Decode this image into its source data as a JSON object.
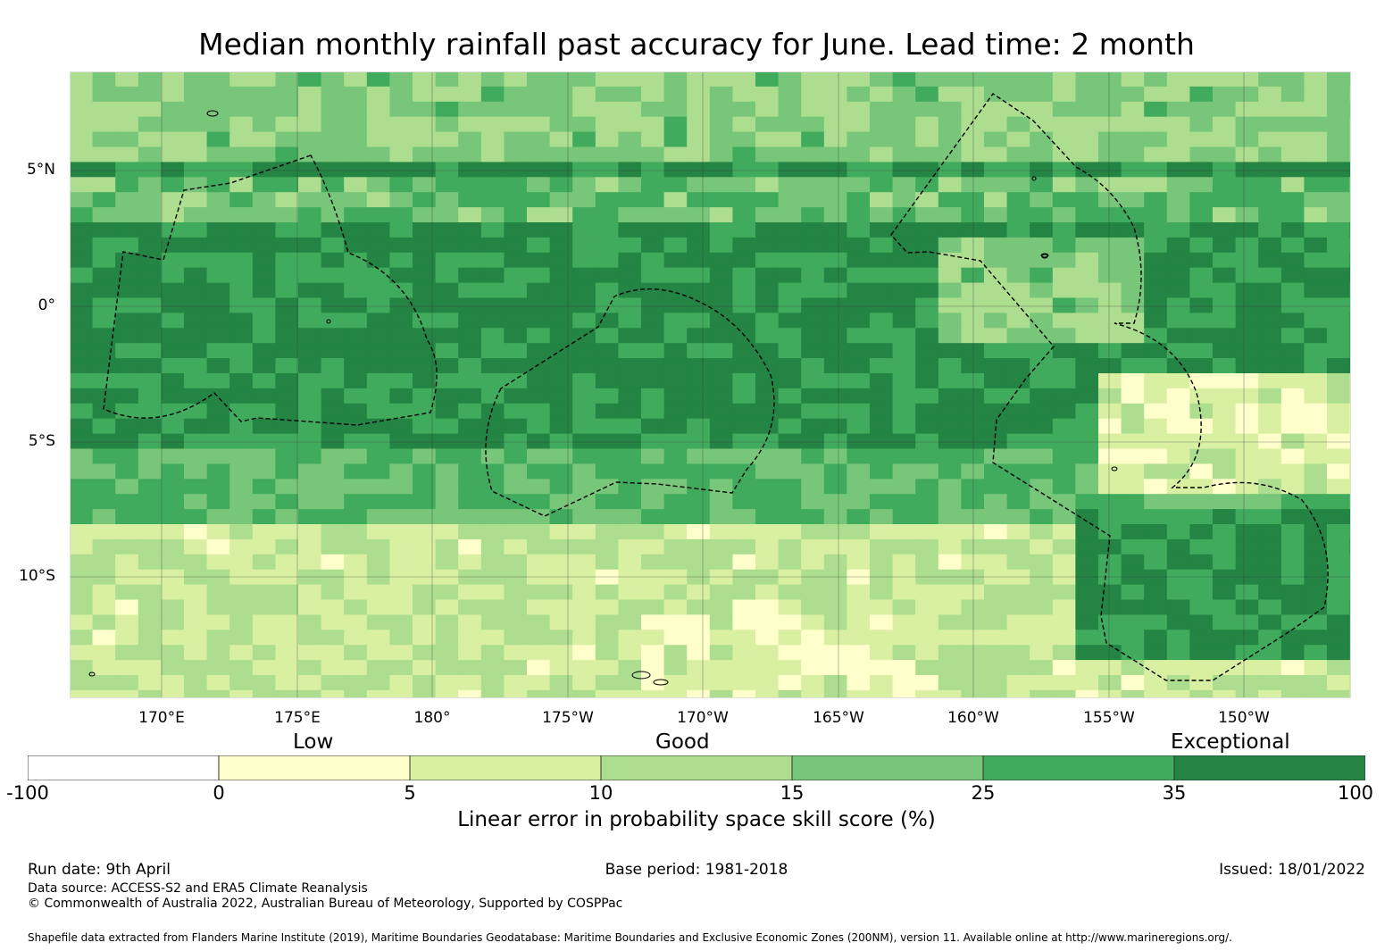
{
  "title": "Median monthly rainfall past accuracy for June. Lead time: 2 month",
  "lat_labels": [
    "5°N",
    "0°",
    "5°S",
    "10°S"
  ],
  "lon_labels": [
    "170°E",
    "175°E",
    "180°",
    "175°W",
    "170°W",
    "165°W",
    "160°W",
    "155°W",
    "150°W"
  ],
  "categories": [
    "Low",
    "Good",
    "Exceptional"
  ],
  "colorbar": {
    "ticks": [
      "-100",
      "0",
      "5",
      "10",
      "15",
      "25",
      "35",
      "100"
    ],
    "colors": [
      "#ffffff",
      "#ffffcc",
      "#d9f0a3",
      "#addd8e",
      "#78c679",
      "#41ab5d",
      "#238443"
    ],
    "title": "Linear error in probability space skill score (%)"
  },
  "footer": {
    "run_date": "Run date: 9th April",
    "base_period": "Base period: 1981-2018",
    "issued": "Issued: 18/01/2022",
    "data_source": "Data source: ACCESS-S2 and ERA5 Climate Reanalysis",
    "copyright": "© Commonwealth of Australia 2022, Australian Bureau of Meteorology, Supported by COSPPac",
    "shapefile": "Shapefile data extracted from Flanders Marine Institute (2019), Maritime Boundaries Geodatabase: Maritime Boundaries and Exclusive Economic Zones (200NM), version 11. Available online at http://www.marineregions.org/."
  }
}
